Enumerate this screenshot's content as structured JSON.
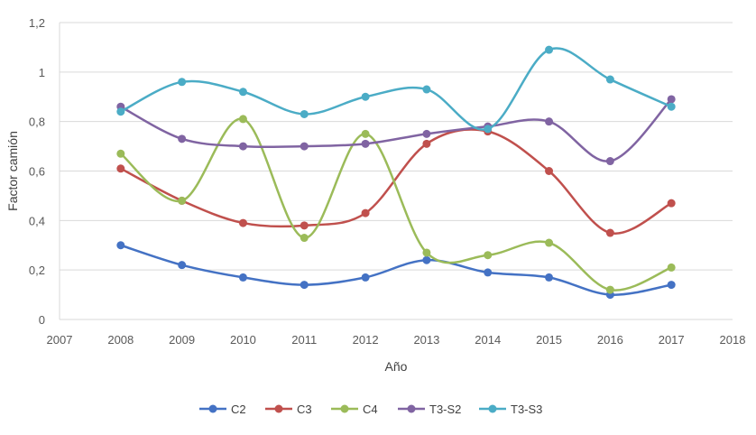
{
  "chart_data": {
    "type": "line",
    "title": "",
    "xlabel": "Año",
    "ylabel": "Factor camión",
    "xlim": [
      2007,
      2018
    ],
    "ylim": [
      0,
      1.2
    ],
    "x_ticks": [
      "2007",
      "2008",
      "2009",
      "2010",
      "2011",
      "2012",
      "2013",
      "2014",
      "2015",
      "2016",
      "2017",
      "2018"
    ],
    "y_ticks": [
      "0",
      "0,2",
      "0,4",
      "0,6",
      "0,8",
      "1",
      "1,2"
    ],
    "y_tick_values": [
      0,
      0.2,
      0.4,
      0.6,
      0.8,
      1.0,
      1.2
    ],
    "grid": "horizontal",
    "smooth": true,
    "legend_position": "bottom",
    "x": [
      2008,
      2009,
      2010,
      2011,
      2012,
      2013,
      2014,
      2015,
      2016,
      2017
    ],
    "series": [
      {
        "name": "C2",
        "color": "#4472C4",
        "values": [
          0.3,
          0.22,
          0.17,
          0.14,
          0.17,
          0.24,
          0.19,
          0.17,
          0.1,
          0.14
        ]
      },
      {
        "name": "C3",
        "color": "#C0504D",
        "values": [
          0.61,
          0.48,
          0.39,
          0.38,
          0.43,
          0.71,
          0.76,
          0.6,
          0.35,
          0.47
        ]
      },
      {
        "name": "C4",
        "color": "#9BBB59",
        "values": [
          0.67,
          0.48,
          0.81,
          0.33,
          0.75,
          0.27,
          0.26,
          0.31,
          0.12,
          0.21
        ]
      },
      {
        "name": "T3-S2",
        "color": "#8064A2",
        "values": [
          0.86,
          0.73,
          0.7,
          0.7,
          0.71,
          0.75,
          0.78,
          0.8,
          0.64,
          0.89
        ]
      },
      {
        "name": "T3-S3",
        "color": "#4BACC6",
        "values": [
          0.84,
          0.96,
          0.92,
          0.83,
          0.9,
          0.93,
          0.77,
          1.09,
          0.97,
          0.86
        ]
      }
    ]
  }
}
